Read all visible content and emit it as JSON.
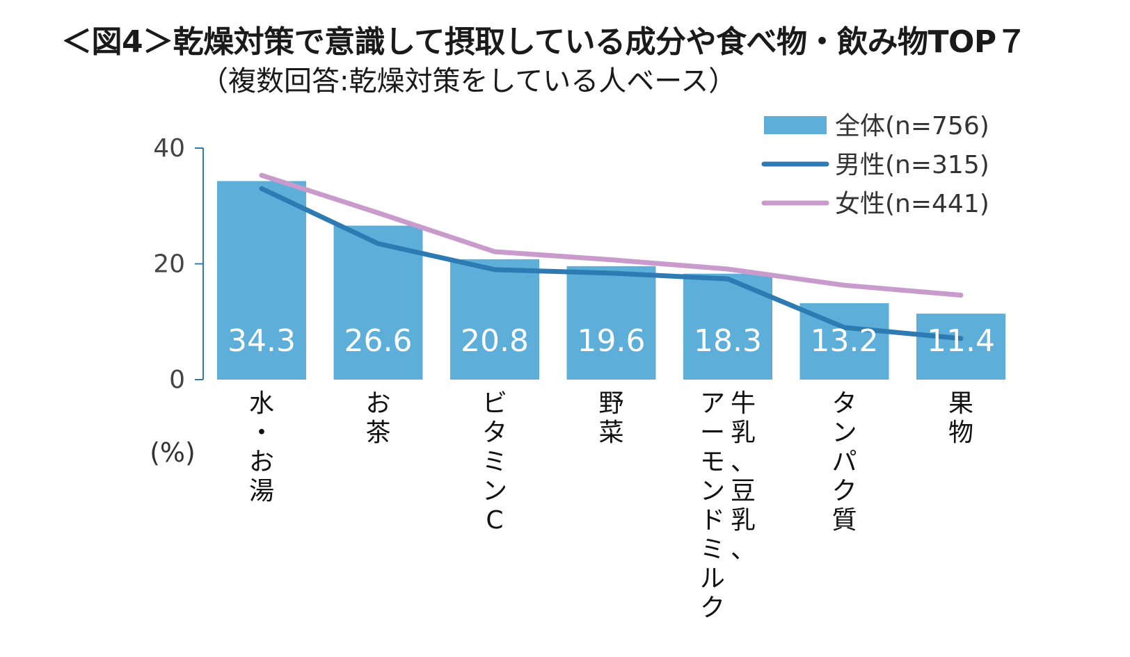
{
  "chart_data": {
    "type": "bar",
    "title": "＜図4＞乾燥対策で意識して摂取している成分や食べ物・飲み物TOP７",
    "subtitle": "（複数回答:乾燥対策をしている人ベース）",
    "unit_label": "(%)",
    "ylim": [
      0,
      40
    ],
    "yticks": [
      "0",
      "20",
      "40"
    ],
    "ytick_values": [
      0,
      20,
      40
    ],
    "categories": [
      [
        "水",
        "・",
        "お",
        "湯"
      ],
      [
        "お",
        "茶"
      ],
      [
        "ビ",
        "タ",
        "ミ",
        "ン",
        "C"
      ],
      [
        "野",
        "菜"
      ],
      [
        "牛",
        "乳",
        "、",
        "豆",
        "乳",
        "、",
        "ア",
        "ー",
        "モ",
        "ン",
        "ド",
        "ミ",
        "ル",
        "ク"
      ],
      [
        "タ",
        "ン",
        "パ",
        "ク",
        "質"
      ],
      [
        "果",
        "物"
      ]
    ],
    "series": [
      {
        "name": "全体(n=756)",
        "kind": "bar",
        "color": "#5dafd9",
        "values": [
          34.3,
          26.6,
          20.8,
          19.6,
          18.3,
          13.2,
          11.4
        ]
      },
      {
        "name": "男性(n=315)",
        "kind": "line",
        "color": "#2e7bb3",
        "values": [
          33.0,
          23.5,
          19.0,
          18.4,
          17.4,
          9.0,
          7.1
        ]
      },
      {
        "name": "女性(n=441)",
        "kind": "line",
        "color": "#c99bcd",
        "values": [
          35.3,
          28.8,
          22.1,
          20.7,
          19.1,
          16.3,
          14.6
        ]
      }
    ],
    "bar_labels": [
      "34.3",
      "26.6",
      "20.8",
      "19.6",
      "18.3",
      "13.2",
      "11.4"
    ]
  }
}
